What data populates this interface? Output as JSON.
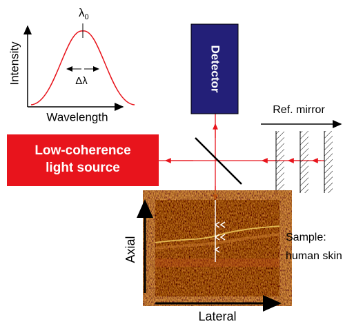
{
  "inset": {
    "peak_label": {
      "symbol": "λ",
      "subscript": "0"
    },
    "y_label": "Intensity",
    "width_label": "Δλ",
    "x_label": "Wavelength"
  },
  "detector": {
    "label": "Detector"
  },
  "reference": {
    "label": "Ref. mirror"
  },
  "source": {
    "lines": [
      "Low-coherence",
      "light source"
    ]
  },
  "sample": {
    "lines": [
      "Sample:",
      "human skin"
    ],
    "axial_label": "Axial",
    "lateral_label": "Lateral"
  }
}
